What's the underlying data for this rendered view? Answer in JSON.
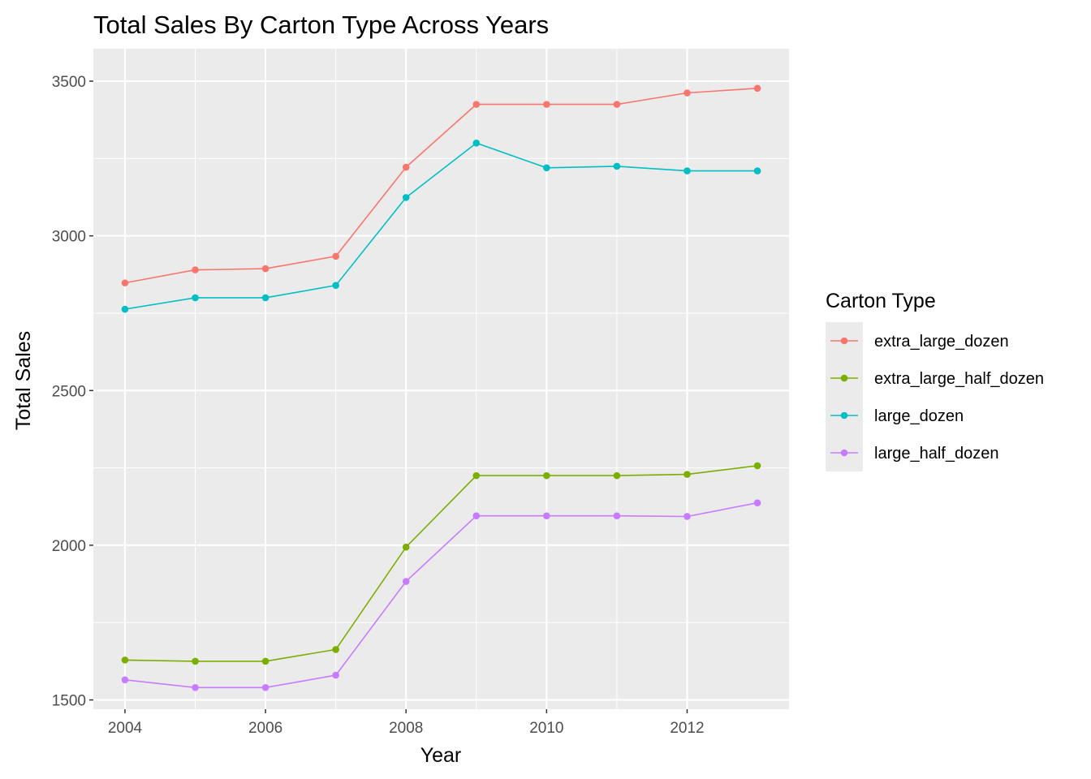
{
  "chart_data": {
    "type": "line",
    "title": "Total Sales By Carton Type Across Years",
    "xlabel": "Year",
    "ylabel": "Total Sales",
    "x": [
      2004,
      2005,
      2006,
      2007,
      2008,
      2009,
      2010,
      2011,
      2012,
      2013
    ],
    "xlim": [
      2003.55,
      2013.45
    ],
    "ylim": [
      1470,
      3605
    ],
    "x_ticks": [
      2004,
      2006,
      2008,
      2010,
      2012
    ],
    "y_ticks": [
      1500,
      2000,
      2500,
      3000,
      3500
    ],
    "x_tick_labels": [
      "2004",
      "2006",
      "2008",
      "2010",
      "2012"
    ],
    "y_tick_labels": [
      "1500",
      "2000",
      "2500",
      "3000",
      "3500"
    ],
    "grid": true,
    "legend": {
      "title": "Carton Type",
      "position": "right"
    },
    "series": [
      {
        "name": "extra_large_dozen",
        "color": "#F8766D",
        "values": [
          2848,
          2890,
          2894,
          2934,
          3222,
          3425,
          3425,
          3425,
          3462,
          3477
        ]
      },
      {
        "name": "extra_large_half_dozen",
        "color": "#7CAE00",
        "values": [
          1629,
          1625,
          1625,
          1663,
          1994,
          2225,
          2225,
          2225,
          2229,
          2257
        ]
      },
      {
        "name": "large_dozen",
        "color": "#00BFC4",
        "values": [
          2763,
          2800,
          2800,
          2840,
          3124,
          3300,
          3220,
          3225,
          3210,
          3210
        ]
      },
      {
        "name": "large_half_dozen",
        "color": "#C77CFF",
        "values": [
          1565,
          1540,
          1540,
          1580,
          1883,
          2095,
          2095,
          2095,
          2093,
          2137
        ]
      }
    ]
  }
}
